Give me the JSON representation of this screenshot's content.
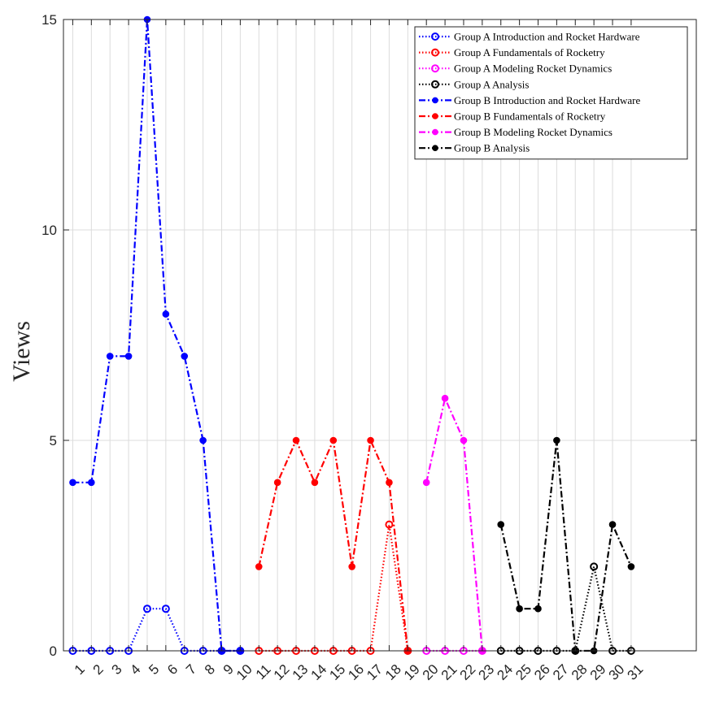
{
  "chart_data": {
    "type": "line",
    "title": "",
    "xlabel": "",
    "ylabel": "Views",
    "xlim": [
      0.5,
      34.5
    ],
    "ylim": [
      0,
      15
    ],
    "yticks": [
      0,
      5,
      10,
      15
    ],
    "xticks": [
      1,
      2,
      3,
      4,
      5,
      6,
      7,
      8,
      9,
      10,
      11,
      12,
      13,
      14,
      15,
      16,
      17,
      18,
      19,
      20,
      21,
      22,
      23,
      24,
      25,
      26,
      27,
      28,
      29,
      30,
      31
    ],
    "xtick_labels": [
      "1",
      "2",
      "3",
      "4",
      "5",
      "6",
      "7",
      "8",
      "9",
      "10",
      "11",
      "12",
      "13",
      "14",
      "15",
      "16",
      "17",
      "18",
      "19",
      "20",
      "21",
      "22",
      "23",
      "24",
      "25",
      "26",
      "27",
      "28",
      "29",
      "30",
      "31"
    ],
    "grid": true,
    "legend_position": "top-right",
    "series": [
      {
        "name": "Group A Introduction and Rocket Hardware",
        "color": "#0000ff",
        "linestyle": "dotted",
        "marker": "open-circle",
        "x": [
          1,
          2,
          3,
          4,
          5,
          6,
          7,
          8,
          9,
          10
        ],
        "y": [
          0,
          0,
          0,
          0,
          1,
          1,
          0,
          0,
          0,
          0
        ]
      },
      {
        "name": "Group A Fundamentals of Rocketry",
        "color": "#ff0000",
        "linestyle": "dotted",
        "marker": "open-circle",
        "x": [
          11,
          12,
          13,
          14,
          15,
          16,
          17,
          18,
          19
        ],
        "y": [
          0,
          0,
          0,
          0,
          0,
          0,
          0,
          3,
          0
        ]
      },
      {
        "name": "Group A Modeling Rocket Dynamics",
        "color": "#ff00ff",
        "linestyle": "dotted",
        "marker": "open-circle",
        "x": [
          20,
          21,
          22,
          23
        ],
        "y": [
          0,
          0,
          0,
          0
        ]
      },
      {
        "name": "Group A Analysis",
        "color": "#000000",
        "linestyle": "dotted",
        "marker": "open-circle",
        "x": [
          24,
          25,
          26,
          27,
          28,
          29,
          30,
          31
        ],
        "y": [
          0,
          0,
          0,
          0,
          0,
          2,
          0,
          0
        ]
      },
      {
        "name": "Group B Introduction and Rocket Hardware",
        "color": "#0000ff",
        "linestyle": "dashdot",
        "marker": "filled-circle",
        "x": [
          1,
          2,
          3,
          4,
          5,
          6,
          7,
          8,
          9,
          10
        ],
        "y": [
          4,
          4,
          7,
          7,
          15,
          8,
          7,
          5,
          0,
          0
        ]
      },
      {
        "name": "Group B Fundamentals of Rocketry",
        "color": "#ff0000",
        "linestyle": "dashdot",
        "marker": "filled-circle",
        "x": [
          11,
          12,
          13,
          14,
          15,
          16,
          17,
          18,
          19
        ],
        "y": [
          2,
          4,
          5,
          4,
          5,
          2,
          5,
          4,
          0
        ]
      },
      {
        "name": "Group B Modeling Rocket Dynamics",
        "color": "#ff00ff",
        "linestyle": "dashdot",
        "marker": "filled-circle",
        "x": [
          20,
          21,
          22,
          23
        ],
        "y": [
          4,
          6,
          5,
          0
        ]
      },
      {
        "name": "Group B Analysis",
        "color": "#000000",
        "linestyle": "dashdot",
        "marker": "filled-circle",
        "x": [
          24,
          25,
          26,
          27,
          28,
          29,
          30,
          31
        ],
        "y": [
          3,
          1,
          1,
          5,
          0,
          0,
          3,
          2
        ]
      }
    ]
  }
}
